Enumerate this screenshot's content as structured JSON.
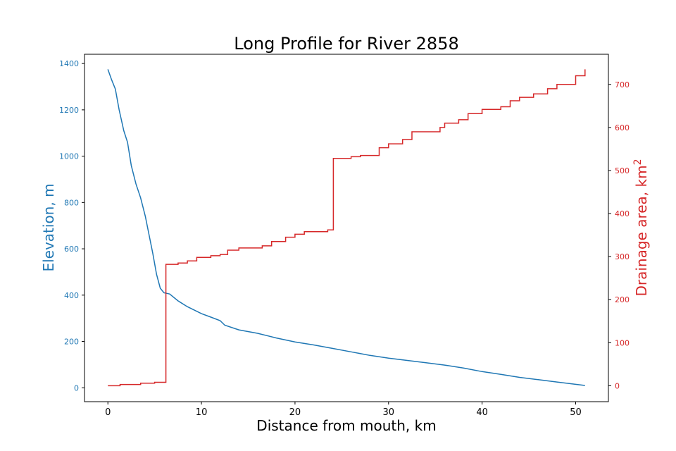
{
  "chart_data": {
    "type": "line",
    "title": "Long Profile for River 2858",
    "xlabel": "Distance from mouth, km",
    "ylabel_left": "Elevation, m",
    "ylabel_right_base": "Drainage area, km",
    "ylabel_right_sup": "2",
    "xlim": [
      -2.5,
      53.5
    ],
    "xticks": [
      0,
      10,
      20,
      30,
      40,
      50
    ],
    "left_axis": {
      "ylim": [
        -60,
        1440
      ],
      "ticks": [
        0,
        200,
        400,
        600,
        800,
        1000,
        1200,
        1400
      ],
      "color": "#1f77b4"
    },
    "right_axis": {
      "ylim": [
        -37,
        770
      ],
      "ticks": [
        0,
        100,
        200,
        300,
        400,
        500,
        600,
        700
      ],
      "color": "#d62728"
    },
    "series": [
      {
        "name": "Elevation",
        "axis": "left",
        "color": "#1f77b4",
        "points": [
          [
            0,
            1375
          ],
          [
            0.4,
            1330
          ],
          [
            0.8,
            1290
          ],
          [
            1.2,
            1200
          ],
          [
            1.7,
            1110
          ],
          [
            2.1,
            1060
          ],
          [
            2.5,
            960
          ],
          [
            3,
            880
          ],
          [
            3.5,
            820
          ],
          [
            4,
            740
          ],
          [
            4.4,
            660
          ],
          [
            4.8,
            580
          ],
          [
            5.2,
            490
          ],
          [
            5.6,
            430
          ],
          [
            6,
            410
          ],
          [
            6.6,
            405
          ],
          [
            7.5,
            375
          ],
          [
            8.5,
            350
          ],
          [
            10,
            320
          ],
          [
            11,
            305
          ],
          [
            12,
            290
          ],
          [
            12.5,
            270
          ],
          [
            14,
            250
          ],
          [
            16,
            235
          ],
          [
            18,
            215
          ],
          [
            20,
            198
          ],
          [
            22,
            185
          ],
          [
            24,
            170
          ],
          [
            26,
            155
          ],
          [
            28,
            140
          ],
          [
            30,
            128
          ],
          [
            32,
            118
          ],
          [
            34,
            108
          ],
          [
            36,
            98
          ],
          [
            38,
            85
          ],
          [
            40,
            70
          ],
          [
            42,
            58
          ],
          [
            44,
            45
          ],
          [
            46,
            35
          ],
          [
            48,
            25
          ],
          [
            50,
            15
          ],
          [
            51,
            10
          ]
        ]
      },
      {
        "name": "Drainage area",
        "axis": "right",
        "color": "#d62728",
        "steps": [
          [
            0,
            0
          ],
          [
            1.3,
            3
          ],
          [
            3.5,
            6
          ],
          [
            5,
            8
          ],
          [
            6.2,
            10
          ],
          [
            6.2,
            282
          ],
          [
            7.5,
            285
          ],
          [
            8.5,
            290
          ],
          [
            9.5,
            298
          ],
          [
            11,
            302
          ],
          [
            12,
            305
          ],
          [
            12.8,
            315
          ],
          [
            14,
            320
          ],
          [
            16.5,
            325
          ],
          [
            17.5,
            335
          ],
          [
            19,
            345
          ],
          [
            20,
            352
          ],
          [
            21,
            358
          ],
          [
            23.5,
            362
          ],
          [
            24.1,
            368
          ],
          [
            24.1,
            528
          ],
          [
            26,
            532
          ],
          [
            27,
            535
          ],
          [
            29,
            553
          ],
          [
            30,
            562
          ],
          [
            31.5,
            572
          ],
          [
            32.5,
            590
          ],
          [
            35.5,
            600
          ],
          [
            36,
            610
          ],
          [
            37.5,
            618
          ],
          [
            38.5,
            632
          ],
          [
            40,
            642
          ],
          [
            42,
            648
          ],
          [
            43,
            662
          ],
          [
            44,
            670
          ],
          [
            45.5,
            678
          ],
          [
            47,
            690
          ],
          [
            48,
            700
          ],
          [
            50,
            720
          ],
          [
            51,
            735
          ]
        ]
      }
    ]
  }
}
